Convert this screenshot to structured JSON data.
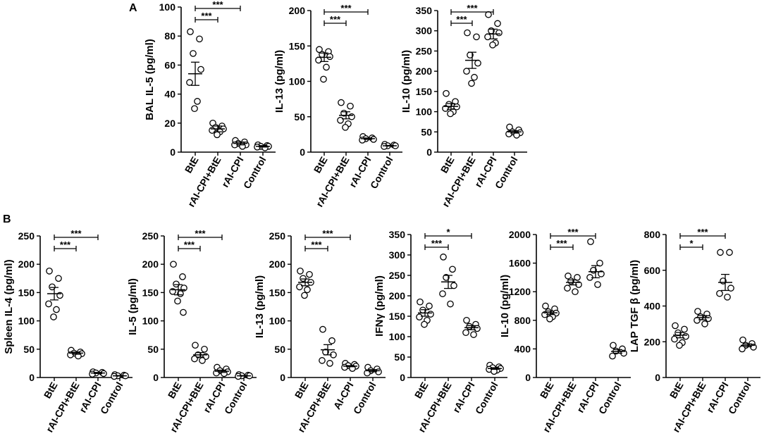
{
  "figure": {
    "panel_letters": [
      "A",
      "B"
    ]
  },
  "chart_data": [
    {
      "type": "scatter",
      "panel": "A",
      "ylabel": "BAL IL-5 (pg/ml)",
      "ylim": [
        0,
        100
      ],
      "yticks": [
        0,
        20,
        40,
        60,
        80,
        100
      ],
      "categories": [
        "BtE",
        "rAI-CPI+BtE",
        "rAI-CPI",
        "Control"
      ],
      "points": [
        [
          83,
          78,
          68,
          57,
          48,
          35,
          30
        ],
        [
          20,
          18,
          17,
          16,
          15,
          14,
          12
        ],
        [
          8,
          7,
          6,
          5,
          5,
          4
        ],
        [
          5,
          4.5,
          4,
          4,
          3.5,
          3
        ]
      ],
      "means": [
        54,
        16,
        6,
        4
      ],
      "sems": [
        8,
        2,
        1,
        0.5
      ],
      "comparisons": [
        {
          "from": 0,
          "to": 1,
          "label": "***"
        },
        {
          "from": 0,
          "to": 2,
          "label": "***"
        }
      ]
    },
    {
      "type": "scatter",
      "panel": "A",
      "ylabel": "IL-13 (pg/ml)",
      "ylim": [
        0,
        200
      ],
      "yticks": [
        0,
        50,
        100,
        150,
        200
      ],
      "categories": [
        "BtE",
        "rAI-CPI+BtE",
        "rAI-CPI",
        "Control"
      ],
      "points": [
        [
          145,
          142,
          138,
          135,
          130,
          120,
          103
        ],
        [
          70,
          65,
          55,
          50,
          45,
          40,
          35
        ],
        [
          22,
          20,
          19,
          18,
          17
        ],
        [
          11,
          10,
          9,
          9,
          8
        ]
      ],
      "means": [
        134,
        52,
        19,
        9
      ],
      "sems": [
        6,
        5,
        1,
        0.5
      ],
      "comparisons": [
        {
          "from": 0,
          "to": 1,
          "label": "***"
        },
        {
          "from": 0,
          "to": 2,
          "label": "***"
        }
      ]
    },
    {
      "type": "scatter",
      "panel": "A",
      "ylabel": "IL-10 (pg/ml)",
      "ylim": [
        0,
        350
      ],
      "yticks": [
        0,
        50,
        100,
        150,
        200,
        250,
        300,
        350
      ],
      "categories": [
        "BtE",
        "rAI-CPI+BtE",
        "rAI-CPI",
        "Control"
      ],
      "points": [
        [
          145,
          125,
          118,
          112,
          108,
          100,
          95
        ],
        [
          295,
          285,
          240,
          220,
          200,
          185,
          170
        ],
        [
          340,
          318,
          300,
          295,
          285,
          270,
          265
        ],
        [
          62,
          55,
          50,
          48,
          45,
          42
        ]
      ],
      "means": [
        113,
        227,
        292,
        50
      ],
      "sems": [
        7,
        20,
        12,
        3
      ],
      "comparisons": [
        {
          "from": 0,
          "to": 1,
          "label": "***"
        },
        {
          "from": 0,
          "to": 2,
          "label": "***"
        }
      ]
    },
    {
      "type": "scatter",
      "panel": "B",
      "ylabel": "Spleen IL-4 (pg/ml)",
      "ylim": [
        0,
        250
      ],
      "yticks": [
        0,
        50,
        100,
        150,
        200,
        250
      ],
      "categories": [
        "BtE",
        "rAI-CPI+BtE",
        "rAI-CPI",
        "Control"
      ],
      "points": [
        [
          188,
          175,
          160,
          145,
          130,
          120,
          107
        ],
        [
          48,
          45,
          43,
          42,
          40,
          38
        ],
        [
          10,
          9,
          8,
          7,
          6
        ],
        [
          5,
          4,
          3,
          3,
          2
        ]
      ],
      "means": [
        148,
        43,
        8,
        3
      ],
      "sems": [
        11,
        2,
        1,
        0.5
      ],
      "comparisons": [
        {
          "from": 0,
          "to": 1,
          "label": "***"
        },
        {
          "from": 0,
          "to": 2,
          "label": "***"
        }
      ]
    },
    {
      "type": "scatter",
      "panel": "B",
      "ylabel": "IL-5 (pg/ml)",
      "ylim": [
        0,
        250
      ],
      "yticks": [
        0,
        50,
        100,
        150,
        200,
        250
      ],
      "categories": [
        "BtE",
        "rAI-CPI+BtE",
        "rAI-CPI",
        "Control"
      ],
      "points": [
        [
          200,
          178,
          165,
          158,
          152,
          148,
          135,
          115
        ],
        [
          57,
          50,
          40,
          37,
          33,
          30
        ],
        [
          18,
          15,
          12,
          10,
          8,
          7
        ],
        [
          5,
          4,
          3,
          3,
          2
        ]
      ],
      "means": [
        155,
        40,
        11,
        3
      ],
      "sems": [
        9,
        4,
        2,
        0.5
      ],
      "comparisons": [
        {
          "from": 0,
          "to": 1,
          "label": "***"
        },
        {
          "from": 0,
          "to": 2,
          "label": "***"
        }
      ]
    },
    {
      "type": "scatter",
      "panel": "B",
      "ylabel": "IL-13 (pg/ml)",
      "ylim": [
        0,
        250
      ],
      "yticks": [
        0,
        50,
        100,
        150,
        200,
        250
      ],
      "categories": [
        "BtE",
        "rAI-CPI+BtE",
        "AI-CPI",
        "Control"
      ],
      "points": [
        [
          188,
          182,
          175,
          168,
          160,
          155,
          145
        ],
        [
          85,
          65,
          45,
          40,
          30,
          25
        ],
        [
          25,
          23,
          21,
          20,
          18,
          16
        ],
        [
          18,
          15,
          12,
          10,
          8
        ]
      ],
      "means": [
        168,
        49,
        20,
        12
      ],
      "sems": [
        6,
        9,
        1,
        2
      ],
      "comparisons": [
        {
          "from": 0,
          "to": 1,
          "label": "***"
        },
        {
          "from": 0,
          "to": 2,
          "label": "***"
        }
      ]
    },
    {
      "type": "scatter",
      "panel": "B",
      "ylabel": "IFNγ (pg/ml)",
      "ylim": [
        0,
        350
      ],
      "yticks": [
        0,
        50,
        100,
        150,
        200,
        250,
        300,
        350
      ],
      "categories": [
        "BtE",
        "rAI-CPI+BtE",
        "rAI-CPI",
        "Control"
      ],
      "points": [
        [
          185,
          175,
          165,
          155,
          148,
          140,
          130
        ],
        [
          295,
          265,
          245,
          225,
          205,
          180
        ],
        [
          140,
          130,
          125,
          120,
          110,
          105
        ],
        [
          30,
          26,
          24,
          22,
          20,
          18,
          15
        ]
      ],
      "means": [
        158,
        234,
        122,
        22
      ],
      "sems": [
        8,
        16,
        5,
        2
      ],
      "comparisons": [
        {
          "from": 0,
          "to": 1,
          "label": "***"
        },
        {
          "from": 0,
          "to": 2,
          "label": "*"
        }
      ]
    },
    {
      "type": "scatter",
      "panel": "B",
      "ylabel": "IL-10 (pg/ml)",
      "ylim": [
        0,
        2000
      ],
      "yticks": [
        0,
        400,
        800,
        1200,
        1600,
        2000
      ],
      "categories": [
        "BtE",
        "rAI-CPI+BtE",
        "rAI-CPI",
        "Control"
      ],
      "points": [
        [
          1000,
          960,
          920,
          900,
          880,
          850,
          820
        ],
        [
          1420,
          1400,
          1350,
          1300,
          1250,
          1200
        ],
        [
          1900,
          1600,
          1500,
          1450,
          1400,
          1300
        ],
        [
          450,
          400,
          370,
          340,
          300
        ]
      ],
      "means": [
        905,
        1330,
        1480,
        365
      ],
      "sems": [
        25,
        35,
        85,
        25
      ],
      "comparisons": [
        {
          "from": 0,
          "to": 1,
          "label": "***"
        },
        {
          "from": 0,
          "to": 2,
          "label": "***"
        }
      ]
    },
    {
      "type": "scatter",
      "panel": "B",
      "ylabel": "LAP TGF β  (pg/ml)",
      "ylim": [
        0,
        800
      ],
      "yticks": [
        0,
        200,
        400,
        600,
        800
      ],
      "categories": [
        "BtE",
        "rAI-CPI+BtE",
        "rAI-CPI",
        "Control"
      ],
      "points": [
        [
          290,
          270,
          250,
          230,
          215,
          195,
          180
        ],
        [
          370,
          355,
          340,
          330,
          320,
          300
        ],
        [
          700,
          700,
          540,
          500,
          470,
          450
        ],
        [
          210,
          190,
          180,
          170,
          160
        ]
      ],
      "means": [
        237,
        335,
        532,
        180
      ],
      "sems": [
        15,
        12,
        45,
        8
      ],
      "comparisons": [
        {
          "from": 0,
          "to": 1,
          "label": "*"
        },
        {
          "from": 0,
          "to": 2,
          "label": "***"
        }
      ]
    }
  ]
}
